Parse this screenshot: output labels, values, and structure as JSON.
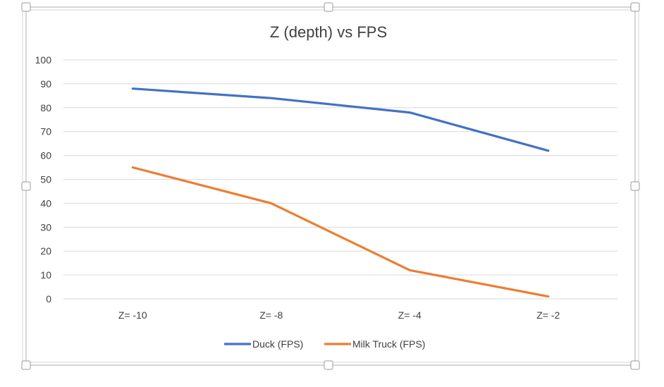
{
  "chart_data": {
    "type": "line",
    "title": "Z (depth) vs FPS",
    "xlabel": "",
    "ylabel": "",
    "categories": [
      "Z= -10",
      "Z= -8",
      "Z= -4",
      "Z= -2"
    ],
    "ylim": [
      0,
      100
    ],
    "yticks": [
      0,
      10,
      20,
      30,
      40,
      50,
      60,
      70,
      80,
      90,
      100
    ],
    "grid": true,
    "legend_position": "bottom",
    "series": [
      {
        "name": "Duck (FPS)",
        "values": [
          88,
          84,
          78,
          62
        ],
        "color": "#4472C4"
      },
      {
        "name": "Milk Truck (FPS)",
        "values": [
          55,
          40,
          12,
          1
        ],
        "color": "#ED7D31"
      }
    ]
  }
}
